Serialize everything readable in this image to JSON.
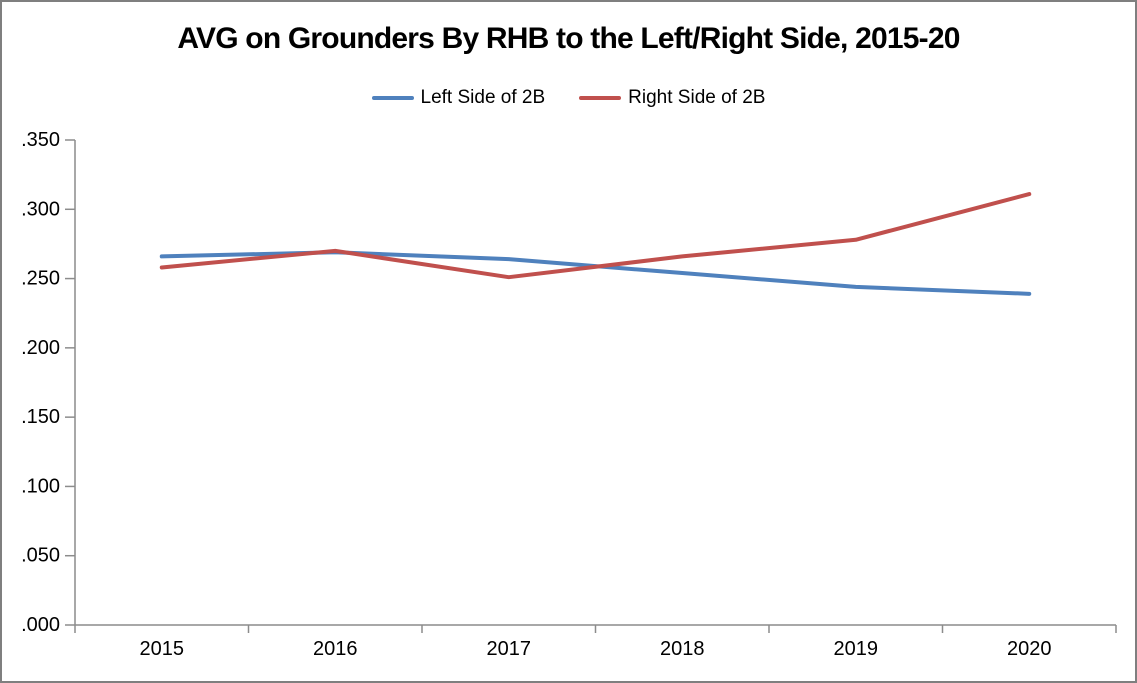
{
  "window": {
    "background": "#ffffff",
    "border_color": "#7f7f7f"
  },
  "chart_data": {
    "type": "line",
    "title": "AVG on Grounders By RHB to the Left/Right Side, 2015-20",
    "categories": [
      "2015",
      "2016",
      "2017",
      "2018",
      "2019",
      "2020"
    ],
    "series": [
      {
        "name": "Left Side of 2B",
        "color": "#4F81BD",
        "values": [
          0.266,
          0.269,
          0.264,
          0.254,
          0.244,
          0.239
        ]
      },
      {
        "name": "Right Side of 2B",
        "color": "#C0504D",
        "values": [
          0.258,
          0.27,
          0.251,
          0.266,
          0.278,
          0.311
        ]
      }
    ],
    "xlabel": "",
    "ylabel": "",
    "ylim": [
      0.0,
      0.35
    ],
    "ytick_step": 0.05,
    "ytick_labels": [
      ".000",
      ".050",
      ".100",
      ".150",
      ".200",
      ".250",
      ".300",
      ".350"
    ],
    "grid": false,
    "legend_position": "top-center",
    "axis_color": "#8C8C8C",
    "line_width": 4
  }
}
